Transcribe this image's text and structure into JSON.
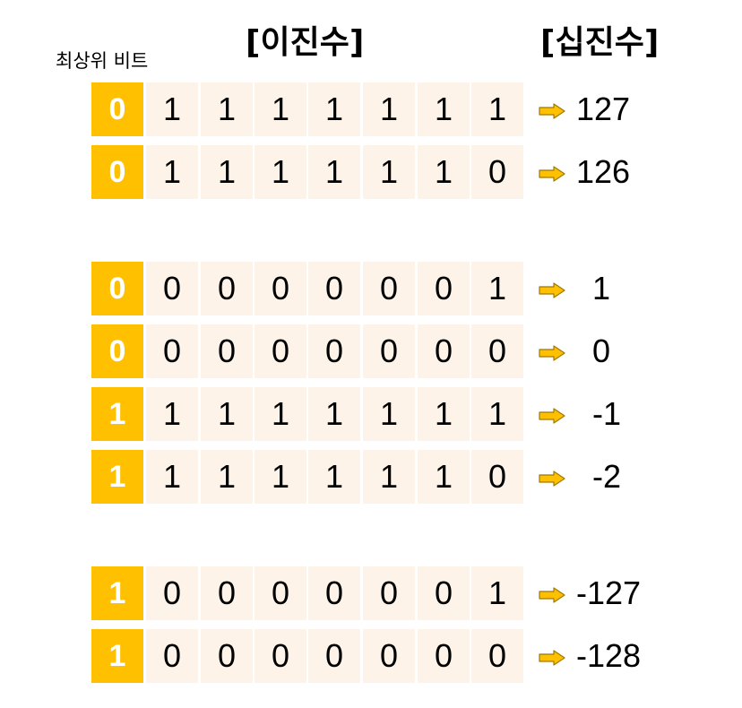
{
  "header": {
    "binary_title": "[이진수]",
    "decimal_title": "[십진수]",
    "msb_label": "최상위 비트"
  },
  "colors": {
    "msb_fill": "#ffc000",
    "bit_fill": "#fdf3e8",
    "arrow_fill": "#ffc000",
    "arrow_stroke": "#a07800"
  },
  "rows": [
    {
      "bits": [
        "0",
        "1",
        "1",
        "1",
        "1",
        "1",
        "1",
        "1"
      ],
      "decimal": "127"
    },
    {
      "bits": [
        "0",
        "1",
        "1",
        "1",
        "1",
        "1",
        "1",
        "0"
      ],
      "decimal": "126"
    },
    {
      "bits": [
        "0",
        "0",
        "0",
        "0",
        "0",
        "0",
        "0",
        "1"
      ],
      "decimal": "1"
    },
    {
      "bits": [
        "0",
        "0",
        "0",
        "0",
        "0",
        "0",
        "0",
        "0"
      ],
      "decimal": "0"
    },
    {
      "bits": [
        "1",
        "1",
        "1",
        "1",
        "1",
        "1",
        "1",
        "1"
      ],
      "decimal": "-1"
    },
    {
      "bits": [
        "1",
        "1",
        "1",
        "1",
        "1",
        "1",
        "1",
        "0"
      ],
      "decimal": "-2"
    },
    {
      "bits": [
        "1",
        "0",
        "0",
        "0",
        "0",
        "0",
        "0",
        "1"
      ],
      "decimal": "-127"
    },
    {
      "bits": [
        "1",
        "0",
        "0",
        "0",
        "0",
        "0",
        "0",
        "0"
      ],
      "decimal": "-128"
    }
  ]
}
